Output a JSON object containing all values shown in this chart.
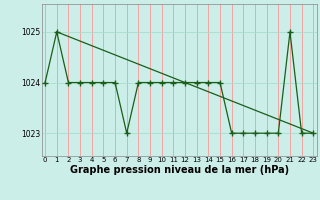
{
  "x": [
    0,
    1,
    2,
    3,
    4,
    5,
    6,
    7,
    8,
    9,
    10,
    11,
    12,
    13,
    14,
    15,
    16,
    17,
    18,
    19,
    20,
    21,
    22,
    23
  ],
  "line1": [
    1024,
    1025,
    1024,
    1024,
    1024,
    1024,
    1024,
    1023,
    1024,
    1024,
    1024,
    1024,
    1024,
    1024,
    1024,
    1024,
    1023,
    1023,
    1023,
    1023,
    1023,
    1025,
    1023,
    1023
  ],
  "line2_x": [
    1,
    23
  ],
  "line2_y": [
    1025,
    1023
  ],
  "bg_color": "#cceee8",
  "grid_color_v": "#ff8888",
  "grid_color_h": "#aaddcc",
  "line_color": "#1a5e1a",
  "marker": "+",
  "marker_size": 4,
  "ylabel_ticks": [
    1023,
    1024,
    1025
  ],
  "xlabel_labels": [
    "0",
    "1",
    "2",
    "3",
    "4",
    "5",
    "6",
    "7",
    "8",
    "9",
    "10",
    "11",
    "12",
    "13",
    "14",
    "15",
    "16",
    "17",
    "18",
    "19",
    "20",
    "21",
    "22",
    "23"
  ],
  "xlabel_text": "Graphe pression niveau de la mer (hPa)",
  "ylim": [
    1022.55,
    1025.55
  ],
  "xlim": [
    -0.3,
    23.3
  ],
  "tick_fontsize": 5.5,
  "xlabel_fontsize": 7.0
}
